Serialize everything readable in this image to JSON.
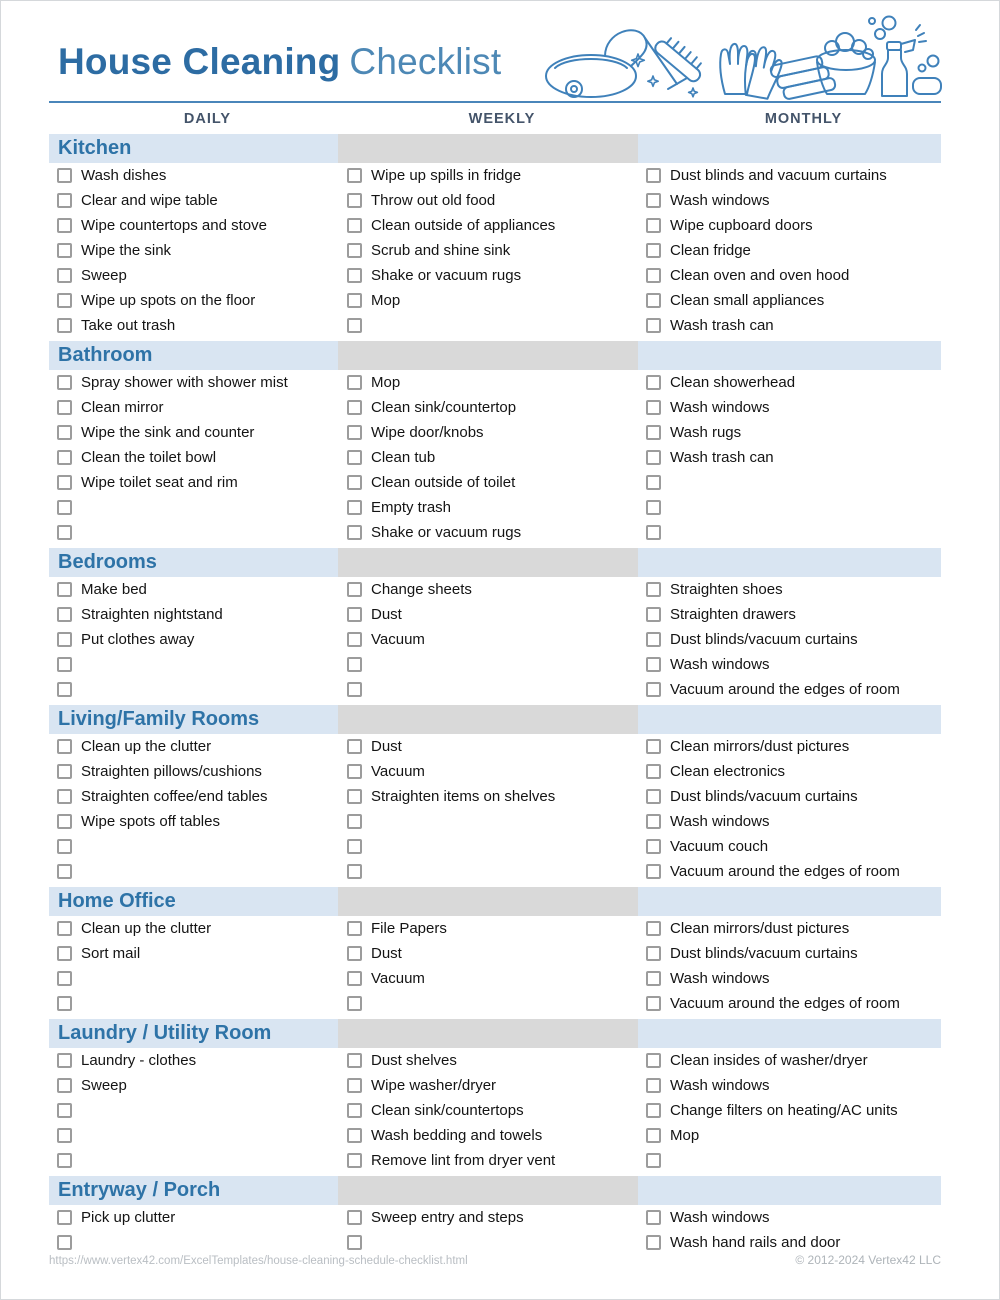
{
  "header": {
    "title_bold": "House Cleaning",
    "title_regular": "Checklist"
  },
  "columns": [
    "DAILY",
    "WEEKLY",
    "MONTHLY"
  ],
  "colors": {
    "title_blue": "#2d6ca3",
    "title_light_blue": "#4d88b5",
    "section_title_blue": "#2e73a7",
    "column_header_text": "#44546a",
    "band_light_blue": "#d9e5f2",
    "band_gray": "#d9d9d9",
    "checkbox_border_gray": "#9c9c9c",
    "illustration_blue": "#3f81ba",
    "footer_gray": "#b9bec3"
  },
  "icons": [
    "vacuum-icon",
    "sparkles-icon",
    "scrub-brush-icon",
    "gloves-icon",
    "towels-icon",
    "bucket-icon",
    "bubbles-icon",
    "spray-bottle-icon",
    "sponge-icon"
  ],
  "sections": [
    {
      "id": "kitchen",
      "name": "Kitchen",
      "daily": [
        "Wash dishes",
        "Clear and wipe table",
        "Wipe countertops and stove",
        "Wipe the sink",
        "Sweep",
        "Wipe up spots on the floor",
        "Take out trash"
      ],
      "weekly": [
        "Wipe up spills in fridge",
        "Throw out old food",
        "Clean outside of appliances",
        "Scrub and shine sink",
        "Shake or vacuum rugs",
        "Mop",
        ""
      ],
      "monthly": [
        "Dust blinds and vacuum curtains",
        "Wash windows",
        "Wipe cupboard doors",
        "Clean fridge",
        "Clean oven and oven hood",
        "Clean small appliances",
        "Wash trash can"
      ]
    },
    {
      "id": "bathroom",
      "name": "Bathroom",
      "daily": [
        "Spray shower with shower mist",
        "Clean mirror",
        "Wipe the sink and counter",
        "Clean the toilet bowl",
        "Wipe toilet seat and rim",
        "",
        ""
      ],
      "weekly": [
        "Mop",
        "Clean sink/countertop",
        "Wipe door/knobs",
        "Clean tub",
        "Clean outside of toilet",
        "Empty trash",
        "Shake or vacuum rugs"
      ],
      "monthly": [
        "Clean showerhead",
        "Wash windows",
        "Wash rugs",
        "Wash trash can",
        "",
        "",
        ""
      ]
    },
    {
      "id": "bedrooms",
      "name": "Bedrooms",
      "daily": [
        "Make bed",
        "Straighten nightstand",
        "Put clothes away",
        "",
        ""
      ],
      "weekly": [
        "Change sheets",
        "Dust",
        "Vacuum",
        "",
        ""
      ],
      "monthly": [
        "Straighten shoes",
        "Straighten drawers",
        "Dust blinds/vacuum curtains",
        "Wash windows",
        "Vacuum around the edges of room"
      ]
    },
    {
      "id": "living-family-rooms",
      "name": "Living/Family Rooms",
      "daily": [
        "Clean up the clutter",
        "Straighten pillows/cushions",
        "Straighten coffee/end tables",
        "Wipe spots off tables",
        "",
        ""
      ],
      "weekly": [
        "Dust",
        "Vacuum",
        "Straighten items on shelves",
        "",
        "",
        ""
      ],
      "monthly": [
        "Clean mirrors/dust pictures",
        "Clean electronics",
        "Dust blinds/vacuum curtains",
        "Wash windows",
        "Vacuum couch",
        "Vacuum around the edges of room"
      ]
    },
    {
      "id": "home-office",
      "name": "Home Office",
      "daily": [
        "Clean up the clutter",
        "Sort mail",
        "",
        ""
      ],
      "weekly": [
        "File Papers",
        "Dust",
        "Vacuum",
        ""
      ],
      "monthly": [
        "Clean mirrors/dust pictures",
        "Dust blinds/vacuum curtains",
        "Wash windows",
        "Vacuum around the edges of room"
      ]
    },
    {
      "id": "laundry-utility-room",
      "name": "Laundry / Utility Room",
      "daily": [
        "Laundry - clothes",
        "Sweep",
        "",
        "",
        ""
      ],
      "weekly": [
        "Dust shelves",
        "Wipe washer/dryer",
        "Clean sink/countertops",
        "Wash bedding and towels",
        "Remove lint from dryer vent"
      ],
      "monthly": [
        "Clean insides of washer/dryer",
        "Wash windows",
        "Change filters on heating/AC units",
        "Mop",
        ""
      ]
    },
    {
      "id": "entryway-porch",
      "name": "Entryway / Porch",
      "daily": [
        "Pick up clutter",
        ""
      ],
      "weekly": [
        "Sweep entry and steps",
        ""
      ],
      "monthly": [
        "Wash windows",
        "Wash hand rails and door"
      ]
    }
  ],
  "footer": {
    "url": "https://www.vertex42.com/ExcelTemplates/house-cleaning-schedule-checklist.html",
    "copyright": "© 2012-2024 Vertex42 LLC"
  }
}
